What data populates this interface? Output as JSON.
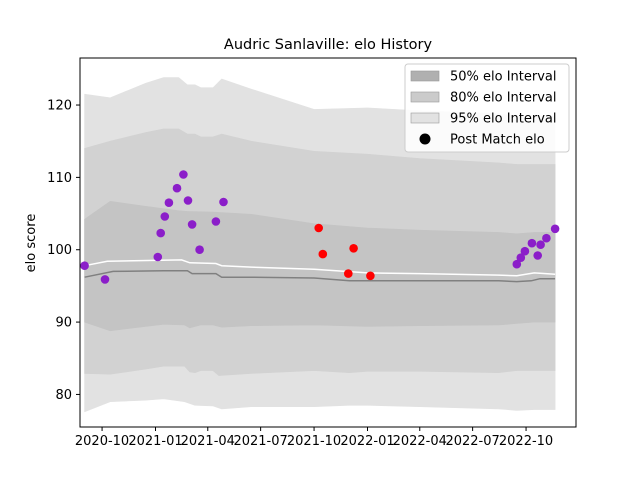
{
  "chart_data": {
    "type": "scatter",
    "title": "Audric Sanlaville: elo History",
    "xlabel": "",
    "ylabel": "elo score",
    "ylim": [
      75.5,
      126.5
    ],
    "xlim": [
      "2020-08-24",
      "2022-12-26"
    ],
    "y_ticks": [
      80,
      90,
      100,
      110,
      120
    ],
    "x_ticks": [
      {
        "date": "2020-10-01",
        "label": "2020-10"
      },
      {
        "date": "2021-01-01",
        "label": "2021-01"
      },
      {
        "date": "2021-04-01",
        "label": "2021-04"
      },
      {
        "date": "2021-07-01",
        "label": "2021-07"
      },
      {
        "date": "2021-10-01",
        "label": "2021-10"
      },
      {
        "date": "2022-01-01",
        "label": "2022-01"
      },
      {
        "date": "2022-04-01",
        "label": "2022-04"
      },
      {
        "date": "2022-07-01",
        "label": "2022-07"
      },
      {
        "date": "2022-10-01",
        "label": "2022-10"
      }
    ],
    "grid": false,
    "legend_position": "top-right",
    "legend": [
      {
        "label": "50% elo Interval",
        "kind": "band",
        "color": "#b0b0b0"
      },
      {
        "label": "80% elo Interval",
        "kind": "band",
        "color": "#cbcbcb"
      },
      {
        "label": "95% elo Interval",
        "kind": "band",
        "color": "#e2e2e2"
      },
      {
        "label": "Post Match elo",
        "kind": "marker",
        "color": "#000000"
      }
    ],
    "bands": [
      {
        "name": "95% elo Interval",
        "color": "#e2e2e2",
        "upper": [
          [
            "2020-09-01",
            121.5
          ],
          [
            "2020-10-15",
            121.0
          ],
          [
            "2020-12-15",
            123.0
          ],
          [
            "2021-01-15",
            123.8
          ],
          [
            "2021-02-10",
            123.8
          ],
          [
            "2021-02-25",
            122.8
          ],
          [
            "2021-03-10",
            122.8
          ],
          [
            "2021-03-20",
            122.4
          ],
          [
            "2021-04-10",
            122.4
          ],
          [
            "2021-04-25",
            123.6
          ],
          [
            "2021-06-15",
            122.2
          ],
          [
            "2021-10-01",
            119.4
          ],
          [
            "2022-01-01",
            119.6
          ],
          [
            "2022-04-01",
            119.2
          ],
          [
            "2022-08-15",
            118.8
          ],
          [
            "2022-09-15",
            118.4
          ],
          [
            "2022-10-15",
            118.6
          ],
          [
            "2022-11-20",
            118.4
          ]
        ],
        "lower": [
          [
            "2020-09-01",
            77.6
          ],
          [
            "2020-10-15",
            79.0
          ],
          [
            "2020-12-15",
            79.2
          ],
          [
            "2021-01-15",
            79.4
          ],
          [
            "2021-02-20",
            79.0
          ],
          [
            "2021-03-10",
            78.5
          ],
          [
            "2021-04-10",
            78.4
          ],
          [
            "2021-04-25",
            78.0
          ],
          [
            "2021-06-15",
            78.3
          ],
          [
            "2021-10-01",
            78.3
          ],
          [
            "2021-12-01",
            78.5
          ],
          [
            "2022-01-01",
            78.5
          ],
          [
            "2022-04-01",
            78.3
          ],
          [
            "2022-08-15",
            78.0
          ],
          [
            "2022-09-15",
            77.8
          ],
          [
            "2022-10-15",
            77.9
          ],
          [
            "2022-11-20",
            77.9
          ]
        ]
      },
      {
        "name": "80% elo Interval",
        "color": "#d2d2d2",
        "upper": [
          [
            "2020-09-01",
            114.0
          ],
          [
            "2020-10-15",
            115.0
          ],
          [
            "2020-12-15",
            116.2
          ],
          [
            "2021-01-15",
            116.7
          ],
          [
            "2021-02-10",
            116.7
          ],
          [
            "2021-02-25",
            116.0
          ],
          [
            "2021-03-10",
            116.0
          ],
          [
            "2021-03-20",
            115.6
          ],
          [
            "2021-04-10",
            115.6
          ],
          [
            "2021-04-25",
            116.0
          ],
          [
            "2021-06-15",
            115.0
          ],
          [
            "2021-10-01",
            113.6
          ],
          [
            "2022-01-01",
            113.2
          ],
          [
            "2022-04-01",
            112.6
          ],
          [
            "2022-08-15",
            112.0
          ],
          [
            "2022-09-15",
            111.8
          ],
          [
            "2022-10-15",
            111.8
          ],
          [
            "2022-11-20",
            111.8
          ]
        ],
        "lower": [
          [
            "2020-09-01",
            82.9
          ],
          [
            "2020-10-15",
            82.8
          ],
          [
            "2020-12-15",
            83.5
          ],
          [
            "2021-01-15",
            83.9
          ],
          [
            "2021-02-20",
            83.9
          ],
          [
            "2021-03-01",
            83.1
          ],
          [
            "2021-03-10",
            83.0
          ],
          [
            "2021-03-20",
            83.3
          ],
          [
            "2021-04-10",
            83.3
          ],
          [
            "2021-04-20",
            82.6
          ],
          [
            "2021-06-15",
            82.9
          ],
          [
            "2021-10-01",
            83.3
          ],
          [
            "2021-12-01",
            83.0
          ],
          [
            "2022-01-01",
            83.2
          ],
          [
            "2022-04-01",
            83.2
          ],
          [
            "2022-08-15",
            83.0
          ],
          [
            "2022-09-15",
            83.3
          ],
          [
            "2022-10-15",
            83.3
          ],
          [
            "2022-11-20",
            83.3
          ]
        ]
      },
      {
        "name": "50% elo Interval",
        "color": "#c4c4c4",
        "upper": [
          [
            "2020-09-01",
            104.2
          ],
          [
            "2020-10-15",
            106.7
          ],
          [
            "2020-12-15",
            106.0
          ],
          [
            "2021-02-10",
            105.4
          ],
          [
            "2021-02-25",
            105.3
          ],
          [
            "2021-04-10",
            105.2
          ],
          [
            "2021-06-15",
            104.9
          ],
          [
            "2021-10-01",
            103.6
          ],
          [
            "2022-01-01",
            103.0
          ],
          [
            "2022-04-01",
            102.7
          ],
          [
            "2022-08-15",
            102.4
          ],
          [
            "2022-09-15",
            102.2
          ],
          [
            "2022-10-15",
            102.4
          ],
          [
            "2022-11-20",
            102.4
          ]
        ],
        "lower": [
          [
            "2020-09-01",
            90.0
          ],
          [
            "2020-10-15",
            88.8
          ],
          [
            "2020-12-15",
            89.4
          ],
          [
            "2021-01-15",
            89.7
          ],
          [
            "2021-02-20",
            89.6
          ],
          [
            "2021-03-01",
            89.2
          ],
          [
            "2021-03-10",
            89.4
          ],
          [
            "2021-03-20",
            89.6
          ],
          [
            "2021-04-10",
            89.6
          ],
          [
            "2021-04-25",
            89.3
          ],
          [
            "2021-06-15",
            89.5
          ],
          [
            "2021-10-01",
            89.6
          ],
          [
            "2022-01-01",
            89.4
          ],
          [
            "2022-04-01",
            89.5
          ],
          [
            "2022-08-15",
            89.6
          ],
          [
            "2022-09-15",
            89.8
          ],
          [
            "2022-10-15",
            90.0
          ],
          [
            "2022-11-20",
            90.0
          ]
        ]
      }
    ],
    "lines": [
      {
        "name": "mean",
        "color": "#ffffff",
        "points": [
          [
            "2020-09-01",
            97.8
          ],
          [
            "2020-10-10",
            98.4
          ],
          [
            "2021-02-15",
            98.6
          ],
          [
            "2021-03-01",
            98.2
          ],
          [
            "2021-04-15",
            98.1
          ],
          [
            "2021-04-25",
            97.8
          ],
          [
            "2021-06-15",
            97.6
          ],
          [
            "2021-10-01",
            97.3
          ],
          [
            "2022-01-01",
            96.8
          ],
          [
            "2022-04-01",
            96.7
          ],
          [
            "2022-08-15",
            96.5
          ],
          [
            "2022-09-15",
            96.4
          ],
          [
            "2022-10-15",
            96.8
          ],
          [
            "2022-11-20",
            96.6
          ]
        ]
      },
      {
        "name": "median",
        "color": "#808080",
        "points": [
          [
            "2020-09-01",
            96.2
          ],
          [
            "2020-10-20",
            97.0
          ],
          [
            "2021-01-15",
            97.1
          ],
          [
            "2021-02-25",
            97.1
          ],
          [
            "2021-03-05",
            96.7
          ],
          [
            "2021-04-15",
            96.7
          ],
          [
            "2021-04-25",
            96.2
          ],
          [
            "2021-06-15",
            96.2
          ],
          [
            "2021-10-01",
            96.1
          ],
          [
            "2021-12-01",
            95.7
          ],
          [
            "2022-01-01",
            95.7
          ],
          [
            "2022-04-01",
            95.7
          ],
          [
            "2022-08-15",
            95.7
          ],
          [
            "2022-09-15",
            95.6
          ],
          [
            "2022-10-10",
            95.7
          ],
          [
            "2022-10-25",
            96.0
          ],
          [
            "2022-11-20",
            96.0
          ]
        ]
      }
    ],
    "points": [
      {
        "x": "2020-09-01",
        "y": 97.8,
        "color": "#8b1ec9"
      },
      {
        "x": "2020-10-06",
        "y": 95.9,
        "color": "#8b1ec9"
      },
      {
        "x": "2021-01-05",
        "y": 99.0,
        "color": "#8b1ec9"
      },
      {
        "x": "2021-01-10",
        "y": 102.3,
        "color": "#8b1ec9"
      },
      {
        "x": "2021-01-17",
        "y": 104.6,
        "color": "#8b1ec9"
      },
      {
        "x": "2021-01-24",
        "y": 106.5,
        "color": "#8b1ec9"
      },
      {
        "x": "2021-02-07",
        "y": 108.5,
        "color": "#8b1ec9"
      },
      {
        "x": "2021-02-18",
        "y": 110.4,
        "color": "#8b1ec9"
      },
      {
        "x": "2021-02-26",
        "y": 106.8,
        "color": "#8b1ec9"
      },
      {
        "x": "2021-03-05",
        "y": 103.5,
        "color": "#8b1ec9"
      },
      {
        "x": "2021-03-18",
        "y": 100.0,
        "color": "#8b1ec9"
      },
      {
        "x": "2021-04-15",
        "y": 103.9,
        "color": "#8b1ec9"
      },
      {
        "x": "2021-04-28",
        "y": 106.6,
        "color": "#8b1ec9"
      },
      {
        "x": "2021-10-09",
        "y": 103.0,
        "color": "#ff0000"
      },
      {
        "x": "2021-10-16",
        "y": 99.4,
        "color": "#ff0000"
      },
      {
        "x": "2021-11-29",
        "y": 96.7,
        "color": "#ff0000"
      },
      {
        "x": "2021-12-08",
        "y": 100.2,
        "color": "#ff0000"
      },
      {
        "x": "2022-01-06",
        "y": 96.4,
        "color": "#ff0000"
      },
      {
        "x": "2022-09-15",
        "y": 98.0,
        "color": "#8b1ec9"
      },
      {
        "x": "2022-09-22",
        "y": 98.9,
        "color": "#8b1ec9"
      },
      {
        "x": "2022-09-29",
        "y": 99.8,
        "color": "#8b1ec9"
      },
      {
        "x": "2022-10-11",
        "y": 100.9,
        "color": "#8b1ec9"
      },
      {
        "x": "2022-10-21",
        "y": 99.2,
        "color": "#8b1ec9"
      },
      {
        "x": "2022-10-26",
        "y": 100.7,
        "color": "#8b1ec9"
      },
      {
        "x": "2022-11-05",
        "y": 101.6,
        "color": "#8b1ec9"
      },
      {
        "x": "2022-11-20",
        "y": 102.9,
        "color": "#8b1ec9"
      }
    ]
  }
}
